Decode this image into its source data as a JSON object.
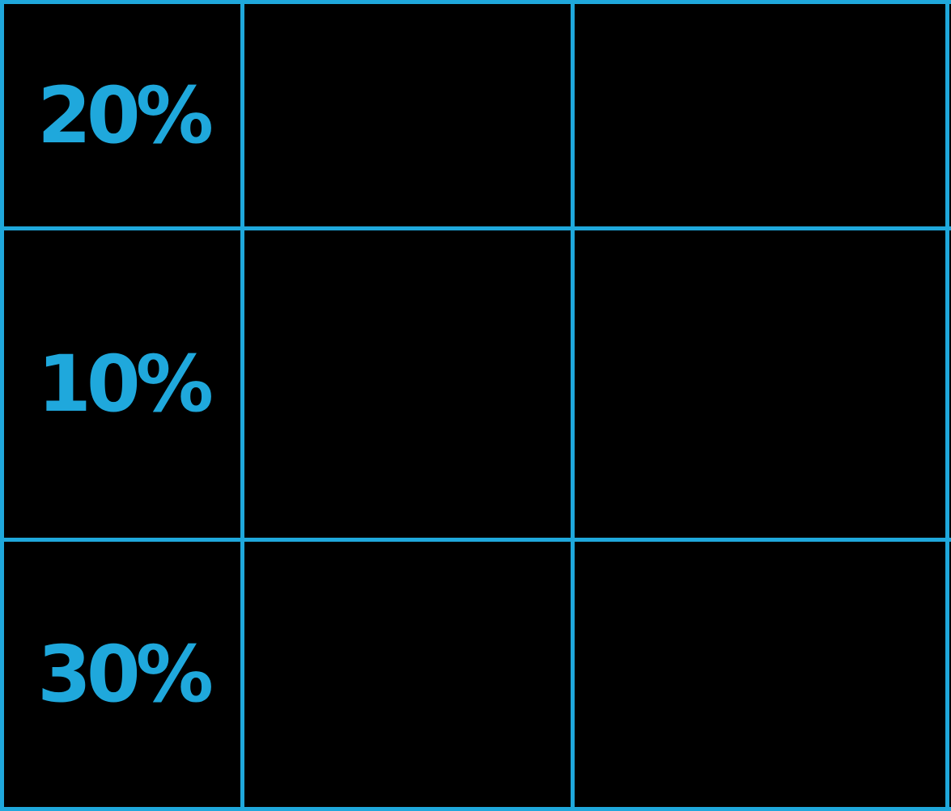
{
  "table": {
    "rows": [
      {
        "label": "20%",
        "cells": [
          "",
          ""
        ]
      },
      {
        "label": "10%",
        "cells": [
          "",
          ""
        ]
      },
      {
        "label": "30%",
        "cells": [
          "",
          ""
        ]
      }
    ]
  },
  "colors": {
    "background": "#000000",
    "line": "#1fa8dc",
    "text": "#1fa8dc"
  }
}
